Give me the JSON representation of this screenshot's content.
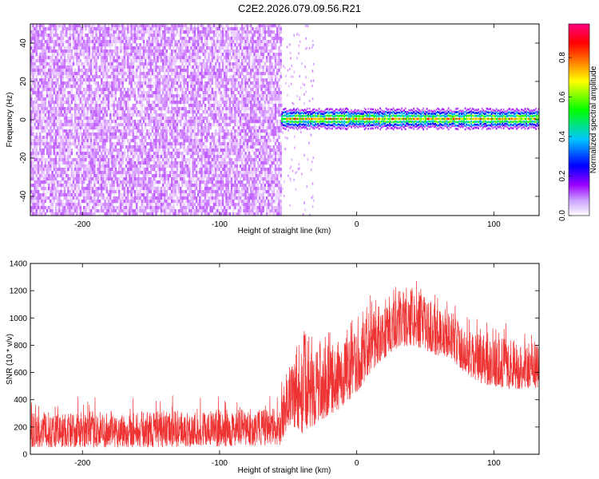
{
  "title": "C2E2.2026.079.09.56.R21",
  "chart_data": [
    {
      "type": "heatmap",
      "title": "C2E2.2026.079.09.56.R21",
      "xlabel": "Height of straight line (km)",
      "ylabel": "Frequency (Hz)",
      "xlim": [
        -238,
        133
      ],
      "ylim": [
        -50,
        50
      ],
      "xticks": [
        -200,
        -100,
        0,
        100
      ],
      "yticks": [
        -40,
        -20,
        0,
        20,
        40
      ],
      "colorbar": {
        "label": "Normalized spectral amplitude",
        "range": [
          0,
          0.97
        ],
        "ticks": [
          0,
          0.2,
          0.4,
          0.6,
          0.8
        ],
        "tick_labels": [
          "0.0",
          "0.2",
          "0.4",
          "0.6",
          "0.8"
        ],
        "colors": [
          "#ffffff",
          "#9b00ff",
          "#0000ff",
          "#00c8ff",
          "#00ff00",
          "#ffff00",
          "#ff8000",
          "#ff0000",
          "#ff0080"
        ]
      },
      "noise_region": {
        "x_range": [
          -238,
          -55
        ],
        "freq_range": [
          -50,
          50
        ],
        "typical_amplitude": 0.05
      },
      "signal_band": {
        "x_range": [
          -55,
          133
        ],
        "center_freq": 0.5,
        "half_width_freq": 2.5,
        "peak_amplitude": 0.9
      }
    },
    {
      "type": "line",
      "xlabel": "Height of straight line (km)",
      "ylabel": "SNR (10 * v/v)",
      "xlim": [
        -238,
        133
      ],
      "ylim": [
        0,
        1400
      ],
      "xticks": [
        -200,
        -100,
        0,
        100
      ],
      "yticks": [
        0,
        200,
        400,
        600,
        800,
        1000,
        1200,
        1400
      ],
      "series": [
        {
          "name": "SNR",
          "color": "#ee3333",
          "envelope_x": [
            -238,
            -150,
            -80,
            -56,
            -50,
            -40,
            -30,
            -20,
            -10,
            0,
            10,
            20,
            30,
            40,
            50,
            60,
            70,
            80,
            90,
            100,
            110,
            120,
            133
          ],
          "envelope_low": [
            50,
            50,
            60,
            70,
            200,
            150,
            220,
            280,
            350,
            450,
            600,
            700,
            780,
            800,
            760,
            720,
            700,
            560,
            520,
            500,
            480,
            480,
            480
          ],
          "envelope_high": [
            310,
            320,
            330,
            340,
            700,
            900,
            850,
            800,
            850,
            900,
            1050,
            1150,
            1200,
            1250,
            1150,
            1100,
            1050,
            900,
            880,
            860,
            850,
            840,
            830
          ]
        }
      ]
    }
  ]
}
